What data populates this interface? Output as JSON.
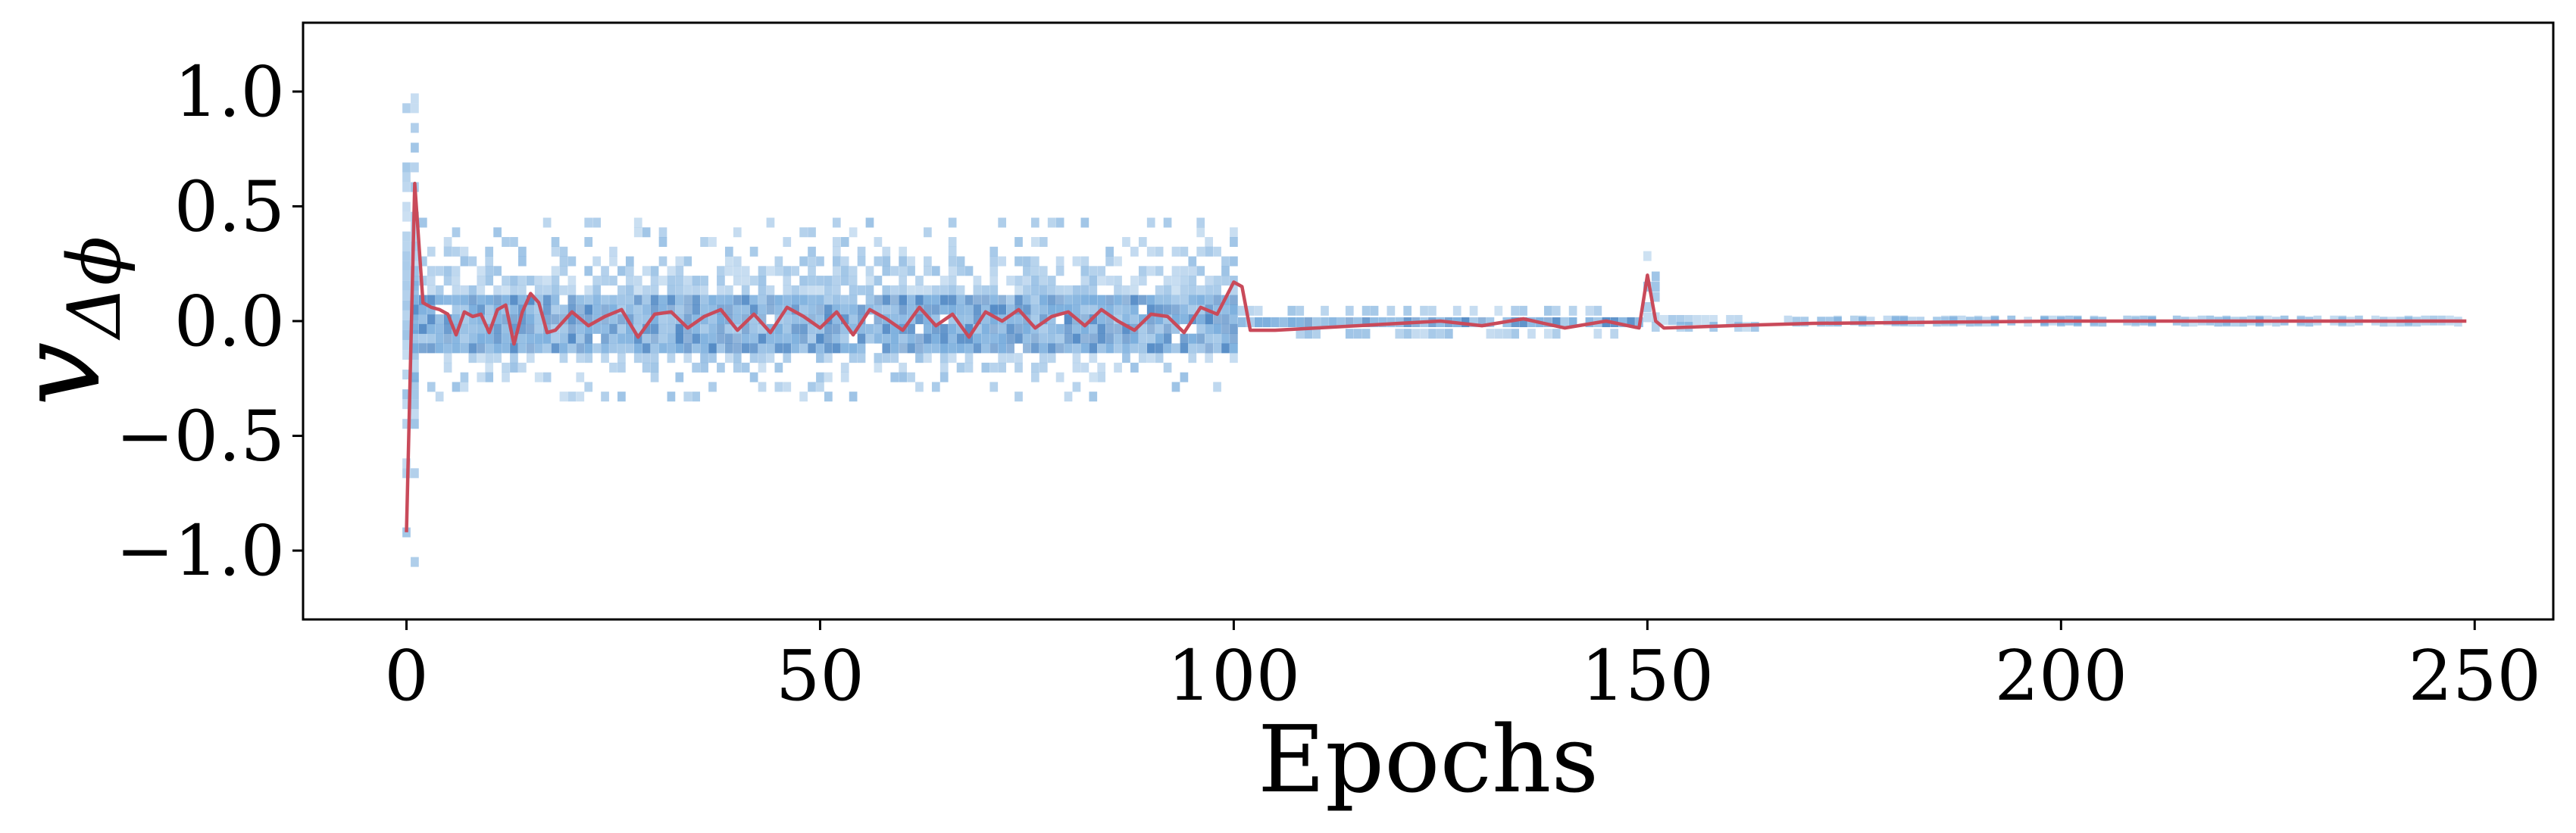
{
  "chart_data": {
    "type": "scatter",
    "title": "",
    "xlabel": "Epochs",
    "ylabel": "v",
    "ylabel_subscript": "Δϕ",
    "xlim": [
      -12.5,
      259.5
    ],
    "ylim": [
      -1.3,
      1.3
    ],
    "xticks": [
      0,
      50,
      100,
      150,
      200,
      250
    ],
    "xtick_labels": [
      "0",
      "50",
      "100",
      "150",
      "200",
      "250"
    ],
    "yticks": [
      -1.0,
      -0.5,
      0.0,
      0.5,
      1.0
    ],
    "ytick_labels": [
      "−1.0",
      "−0.5",
      "0.0",
      "0.5",
      "1.0"
    ],
    "grid": false,
    "colors": {
      "density": "#5b9bd5",
      "density_dark": "#2a6fb8",
      "mean_line": "#c94a5a",
      "axes": "#000000"
    },
    "series": [
      {
        "kind": "density",
        "phases": [
          {
            "x_range": [
              0,
              1
            ],
            "y_range": [
              -1.2,
              1.25
            ]
          },
          {
            "x_range": [
              1,
              101
            ],
            "y_range": [
              -0.35,
              0.45
            ],
            "core": [
              -0.12,
              0.12
            ]
          },
          {
            "x_range": [
              101,
              150
            ],
            "y_range": [
              -0.08,
              0.07
            ],
            "core": [
              -0.05,
              0.03
            ]
          },
          {
            "x_range": [
              150,
              151
            ],
            "y_range": [
              -0.05,
              0.35
            ]
          },
          {
            "x_range": [
              151,
              166
            ],
            "y_range": [
              -0.04,
              0.02
            ]
          },
          {
            "x_range": [
              166,
              249
            ],
            "y_range": [
              -0.005,
              0.005
            ]
          }
        ]
      },
      {
        "kind": "mean_line",
        "x": [
          0,
          1,
          2,
          3,
          4,
          5,
          6,
          7,
          8,
          9,
          10,
          11,
          12,
          13,
          14,
          15,
          16,
          17,
          18,
          19,
          20,
          22,
          24,
          26,
          28,
          30,
          32,
          34,
          36,
          38,
          40,
          42,
          44,
          46,
          48,
          50,
          52,
          54,
          56,
          58,
          60,
          62,
          64,
          66,
          68,
          70,
          72,
          74,
          76,
          78,
          80,
          82,
          84,
          86,
          88,
          90,
          92,
          94,
          96,
          98,
          100,
          101,
          102,
          105,
          110,
          115,
          120,
          125,
          130,
          135,
          140,
          145,
          149,
          150,
          151,
          152,
          160,
          170,
          200,
          249
        ],
        "y": [
          -0.92,
          0.6,
          0.08,
          0.06,
          0.05,
          0.03,
          -0.06,
          0.04,
          0.02,
          0.03,
          -0.05,
          0.05,
          0.07,
          -0.1,
          0.04,
          0.12,
          0.08,
          -0.05,
          -0.04,
          0.0,
          0.04,
          -0.02,
          0.02,
          0.05,
          -0.07,
          0.03,
          0.04,
          -0.03,
          0.02,
          0.05,
          -0.04,
          0.03,
          -0.05,
          0.06,
          0.02,
          -0.03,
          0.04,
          -0.06,
          0.05,
          0.01,
          -0.04,
          0.06,
          -0.02,
          0.03,
          -0.07,
          0.04,
          0.0,
          0.05,
          -0.03,
          0.02,
          0.04,
          -0.02,
          0.05,
          0.0,
          -0.04,
          0.03,
          0.02,
          -0.05,
          0.06,
          0.03,
          0.17,
          0.15,
          -0.04,
          -0.04,
          -0.03,
          -0.02,
          -0.01,
          0.0,
          -0.02,
          0.01,
          -0.03,
          0.0,
          -0.03,
          0.2,
          0.0,
          -0.03,
          -0.02,
          -0.01,
          0.0,
          0.0
        ]
      }
    ]
  }
}
